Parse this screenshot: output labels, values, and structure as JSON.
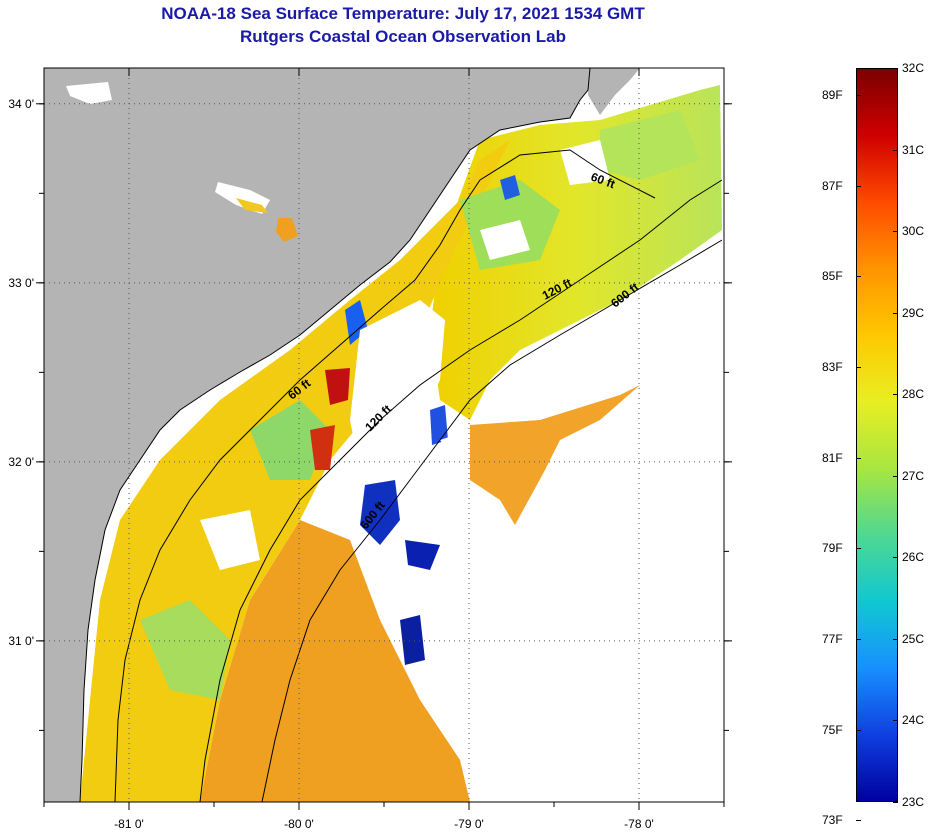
{
  "title": "NOAA-18 Sea Surface Temperature:  July 17, 2021 1534 GMT",
  "subtitle": "Rutgers Coastal Ocean Observation Lab",
  "map": {
    "lon_range": [
      -81.5,
      -77.5
    ],
    "lat_range": [
      30.1,
      34.2
    ],
    "lon_ticks": [
      {
        "value": -81,
        "label": "-81 0'"
      },
      {
        "value": -80,
        "label": "-80 0'"
      },
      {
        "value": -79,
        "label": "-79 0'"
      },
      {
        "value": -78,
        "label": "-78 0'"
      }
    ],
    "lat_ticks": [
      {
        "value": 34,
        "label": "34 0'"
      },
      {
        "value": 33,
        "label": "33 0'"
      },
      {
        "value": 32,
        "label": "32 0'"
      },
      {
        "value": 31,
        "label": "31 0'"
      }
    ],
    "contour_labels": [
      "60 ft",
      "120 ft",
      "600 ft",
      "60 ft",
      "120 ft",
      "600 ft"
    ],
    "land_color": "#b4b4b4",
    "cloud_color": "#ffffff"
  },
  "colorbar": {
    "celsius_labels": [
      "32C",
      "31C",
      "30C",
      "29C",
      "28C",
      "27C",
      "26C",
      "25C",
      "24C",
      "23C"
    ],
    "fahrenheit_labels": [
      "89F",
      "87F",
      "85F",
      "83F",
      "81F",
      "79F",
      "77F",
      "75F",
      "73F"
    ],
    "colors": [
      "#7a0000",
      "#d00000",
      "#ff4a00",
      "#ff9400",
      "#ffc800",
      "#e8ee20",
      "#a8e640",
      "#50d890",
      "#10c8d0",
      "#1890ff",
      "#1040e0",
      "#0000a0"
    ]
  }
}
